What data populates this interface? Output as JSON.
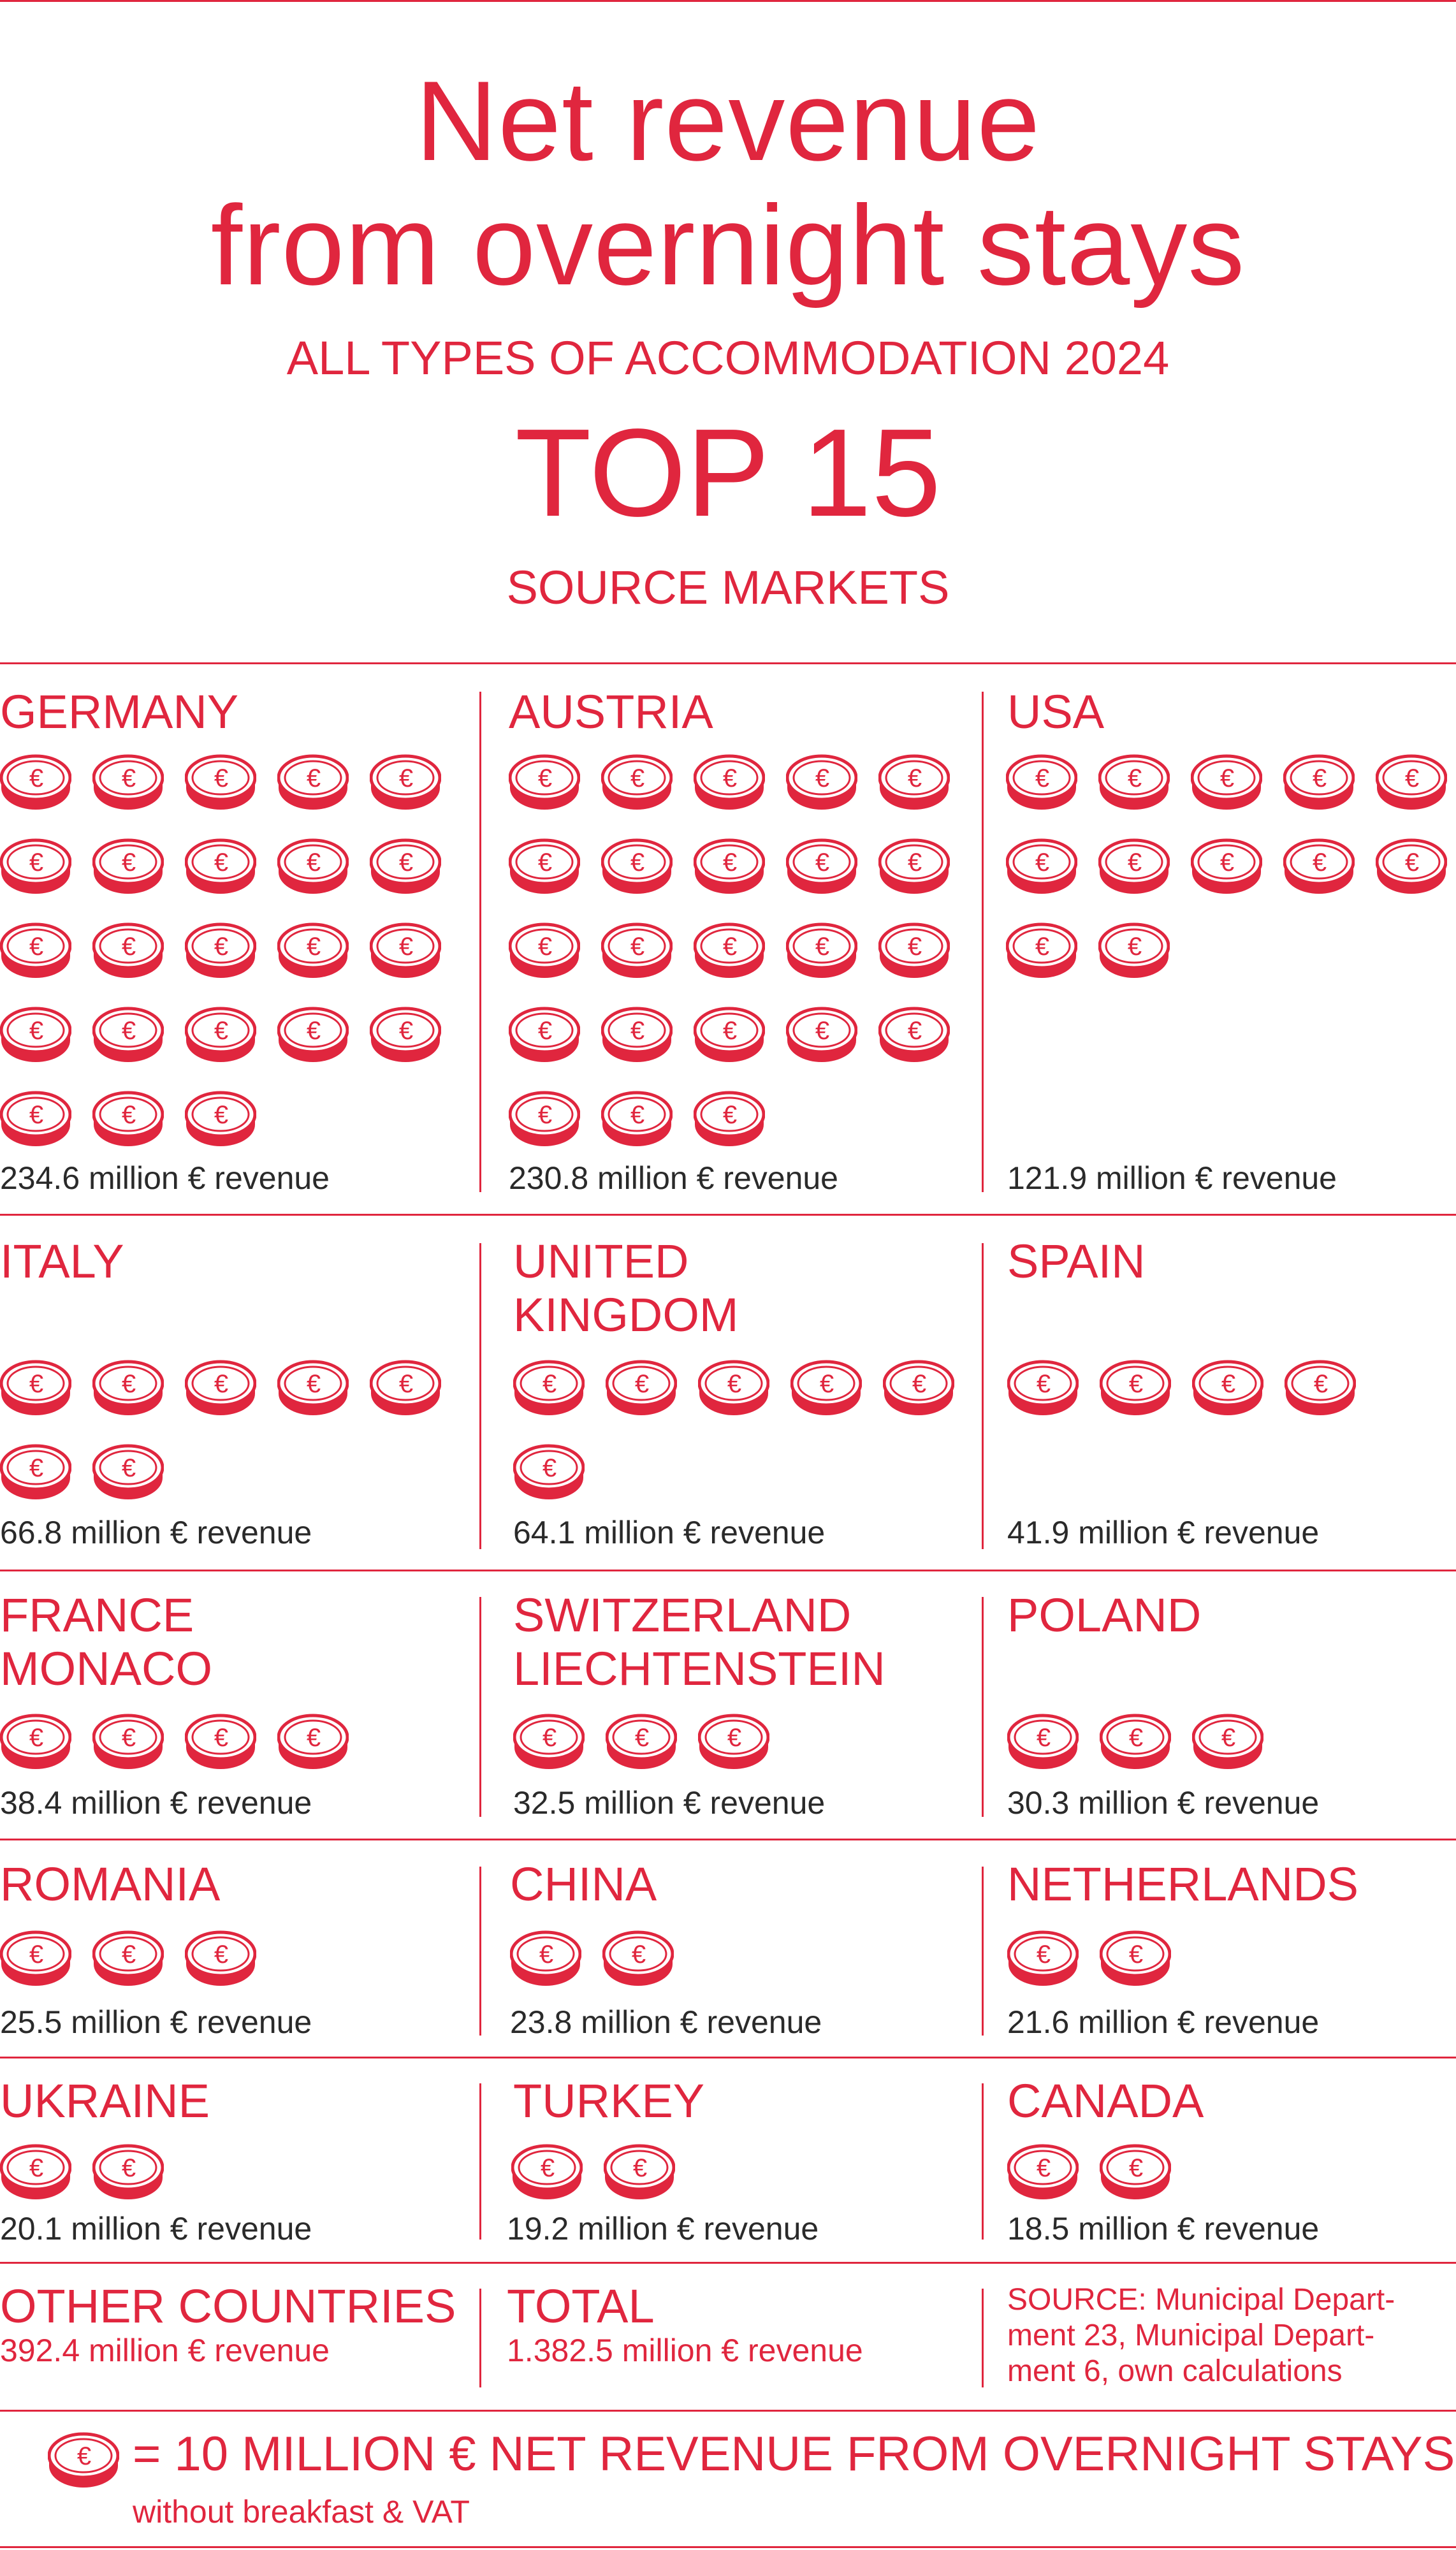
{
  "header": {
    "title_line1": "Net revenue",
    "title_line2": "from overnight stays",
    "subtitle": "ALL TYPES OF ACCOMMODATION 2024",
    "top": "TOP 15",
    "markets": "SOURCE MARKETS"
  },
  "colors": {
    "accent": "#e0263e",
    "text_dark": "#2a2a2a",
    "background": "#ffffff"
  },
  "icon": "euro-coin-icon",
  "markets": [
    {
      "name": "GERMANY",
      "coins": 23,
      "revenue": "234.6 million € revenue"
    },
    {
      "name": "AUSTRIA",
      "coins": 23,
      "revenue": "230.8 million € revenue"
    },
    {
      "name": "USA",
      "coins": 12,
      "revenue": "121.9 million € revenue"
    },
    {
      "name": "ITALY",
      "coins": 7,
      "revenue": "66.8 million € revenue"
    },
    {
      "name": "UNITED\nKINGDOM",
      "coins": 6,
      "revenue": "64.1 million € revenue"
    },
    {
      "name": "SPAIN",
      "coins": 4,
      "revenue": "41.9 million € revenue"
    },
    {
      "name": "FRANCE\nMONACO",
      "coins": 4,
      "revenue": "38.4 million € revenue"
    },
    {
      "name": "SWITZERLAND\nLIECHTENSTEIN",
      "coins": 3,
      "revenue": "32.5 million € revenue"
    },
    {
      "name": "POLAND",
      "coins": 3,
      "revenue": "30.3 million € revenue"
    },
    {
      "name": "ROMANIA",
      "coins": 3,
      "revenue": "25.5 million € revenue"
    },
    {
      "name": "CHINA",
      "coins": 2,
      "revenue": "23.8 million € revenue"
    },
    {
      "name": "NETHERLANDS",
      "coins": 2,
      "revenue": "21.6 million € revenue"
    },
    {
      "name": "UKRAINE",
      "coins": 2,
      "revenue": "20.1 million € revenue"
    },
    {
      "name": "TURKEY",
      "coins": 2,
      "revenue": "19.2 million € revenue"
    },
    {
      "name": "CANADA",
      "coins": 2,
      "revenue": "18.5 million € revenue"
    }
  ],
  "footer": {
    "other_name": "OTHER COUNTRIES",
    "other_revenue": "392.4 million € revenue",
    "total_name": "TOTAL",
    "total_revenue": "1.382.5 million € revenue",
    "source": "SOURCE: Municipal Depart-\nment 23, Municipal Depart-\nment 6, own calculations"
  },
  "legend": {
    "text": "= 10 MILLION € NET REVENUE FROM OVERNIGHT STAYS",
    "note": "without breakfast & VAT"
  },
  "chart_data": {
    "type": "pictogram",
    "title": "Net revenue from overnight stays",
    "subtitle": "ALL TYPES OF ACCOMMODATION 2024",
    "unit": "million € revenue",
    "icon_value": 10,
    "categories": [
      "GERMANY",
      "AUSTRIA",
      "USA",
      "ITALY",
      "UNITED KINGDOM",
      "SPAIN",
      "FRANCE MONACO",
      "SWITZERLAND LIECHTENSTEIN",
      "POLAND",
      "ROMANIA",
      "CHINA",
      "NETHERLANDS",
      "UKRAINE",
      "TURKEY",
      "CANADA"
    ],
    "values": [
      234.6,
      230.8,
      121.9,
      66.8,
      64.1,
      41.9,
      38.4,
      32.5,
      30.3,
      25.5,
      23.8,
      21.6,
      20.1,
      19.2,
      18.5
    ],
    "other_countries": 392.4,
    "total": 1382.5
  }
}
